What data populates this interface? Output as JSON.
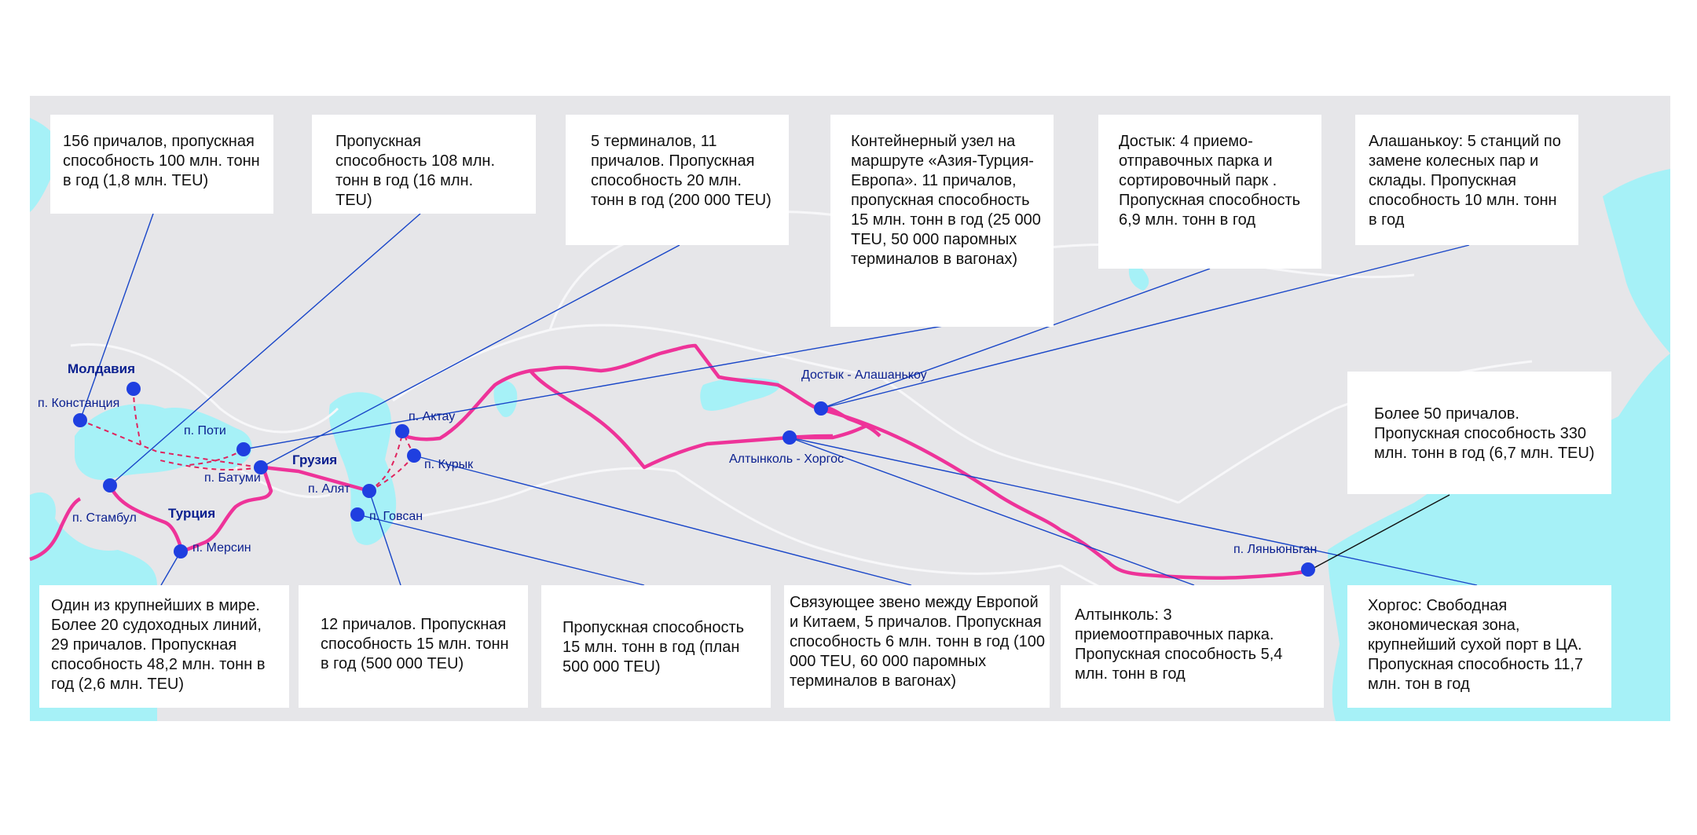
{
  "colors": {
    "background": "#ffffff",
    "land": "#e6e6e9",
    "borders": "#f7f7f9",
    "water": "#a6f1f7",
    "route": "#ee3399",
    "node": "#1f3fe0",
    "leader_line": "#1946c8",
    "label_text": "#0a1f8f"
  },
  "map_labels": {
    "moldova": "Молдавия",
    "constanta": "п. Констанция",
    "poti": "п. Поти",
    "batumi": "п. Батуми",
    "georgia": "Грузия",
    "aktau": "п. Актау",
    "kuryk": "п. Курык",
    "alyat": "п. Алят",
    "govsan": "п. Говсан",
    "istanbul": "п. Стамбул",
    "turkey": "Турция",
    "mersin": "п. Мерсин",
    "dostyk": "Достык - Алашанькоу",
    "altynkol": "Алтынколь - Хоргос",
    "lianyungang": "п. Ляньюньган"
  },
  "callouts": {
    "constanta": "156 причалов, пропускная способность 100 млн. тонн в год (1,8 млн. TEU)",
    "poti": "Пропускная способность 108 млн. тонн в год (16 млн. TEU)",
    "batumi": "5 терминалов, 11 причалов. Пропускная способность 20 млн. тонн в год (200 000 TEU)",
    "alyat": "Контейнерный узел на маршруте «Азия-Турция-Европа». 11 причалов, пропускная способность 15 млн. тонн в год (25 000 TEU, 50 000 паромных терминалов в вагонах)",
    "dostyk": "Достык: 4 приемо-отправочных парка и сортировочный парк . Пропускная способность 6,9 млн. тонн в год",
    "alashankou": "Алашанькоу: 5 станций по замене колесных пар и склады. Пропускная способность 10 млн. тонн в год",
    "lianyungang": "Более 50 причалов. Пропускная способность 330 млн. тонн в год (6,7 млн. TEU)",
    "istanbul": "Один из крупнейших в мире. Более 20 судоходных линий, 29 причалов. Пропускная способность 48,2 млн. тонн в год (2,6 млн. TEU)",
    "mersin": "12 причалов. Пропускная способность 15 млн. тонн в год (500 000 TEU)",
    "govsan": "Пропускная способность 15 млн. тонн в год (план 500 000 TEU)",
    "aktau": "Связующее звено между Европой и Китаем, 5 причалов. Пропускная способность 6 млн. тонн в год (100 000 TEU, 60 000 паромных терминалов в вагонах)",
    "altynkol": "Алтынколь: 3 приемоотправочных парка. Пропускная способность 5,4 млн. тонн в год",
    "khorgos": "Хоргос: Свободная экономическая зона, крупнейший сухой порт в ЦА. Пропускная способность 11,7 млн. тон в год"
  }
}
